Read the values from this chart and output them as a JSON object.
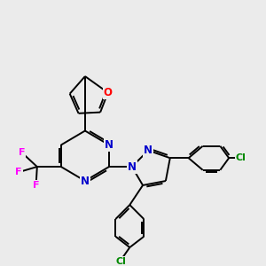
{
  "bg_color": "#ebebeb",
  "bond_color": "#000000",
  "N_color": "#0000cc",
  "O_color": "#ff0000",
  "F_color": "#ff00ff",
  "Cl_color": "#008800",
  "line_width": 1.4,
  "font_size": 8.5,
  "fig_width": 3.0,
  "fig_height": 3.0,
  "dpi": 100,
  "xlim": [
    0,
    12
  ],
  "ylim": [
    0,
    12
  ]
}
